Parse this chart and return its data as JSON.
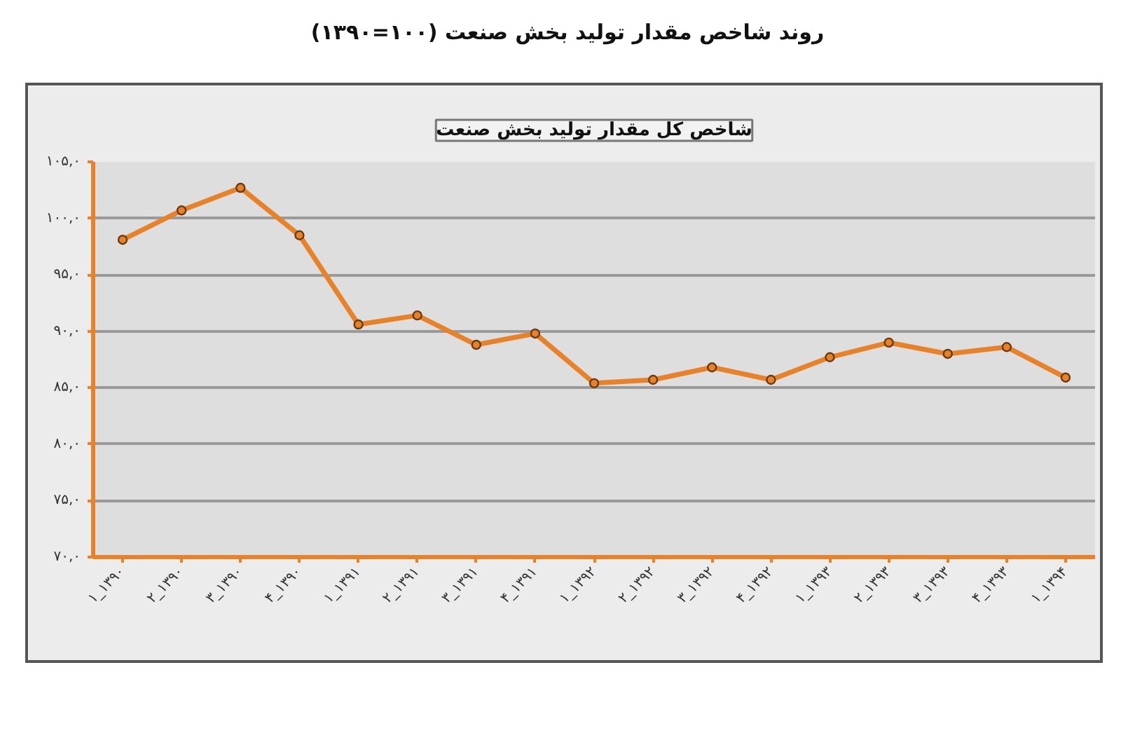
{
  "chart_data": {
    "type": "line",
    "title": "روند شاخص مقدار تولید بخش صنعت (۱۰۰=۱۳۹۰)",
    "subtitle": "شاخص کل مقدار تولید بخش صنعت",
    "categories": [
      "۱_۱۳۹۰",
      "۲_۱۳۹۰",
      "۳_۱۳۹۰",
      "۴_۱۳۹۰",
      "۱_۱۳۹۱",
      "۲_۱۳۹۱",
      "۳_۱۳۹۱",
      "۴_۱۳۹۱",
      "۱_۱۳۹۲",
      "۲_۱۳۹۲",
      "۳_۱۳۹۲",
      "۴_۱۳۹۲",
      "۱_۱۳۹۳",
      "۲_۱۳۹۳",
      "۳_۱۳۹۳",
      "۴_۱۳۹۳",
      "۱_۱۳۹۴"
    ],
    "series": [
      {
        "color": "#e8822a",
        "values": [
          98.1,
          100.7,
          102.7,
          98.5,
          90.6,
          91.4,
          88.8,
          89.8,
          85.4,
          85.7,
          86.8,
          85.7,
          87.7,
          89.0,
          88.0,
          88.6,
          85.9
        ]
      }
    ],
    "ylim": [
      70,
      105
    ],
    "yticks": [
      {
        "value": 70,
        "label": "۷۰,۰"
      },
      {
        "value": 75,
        "label": "۷۵,۰"
      },
      {
        "value": 80,
        "label": "۸۰,۰"
      },
      {
        "value": 85,
        "label": "۸۵,۰"
      },
      {
        "value": 90,
        "label": "۹۰,۰"
      },
      {
        "value": 95,
        "label": "۹۵,۰"
      },
      {
        "value": 100,
        "label": "۱۰۰,۰"
      },
      {
        "value": 105,
        "label": "۱۰۵,۰"
      }
    ],
    "grid": "y",
    "marker": "circle",
    "line_style": "solid"
  }
}
